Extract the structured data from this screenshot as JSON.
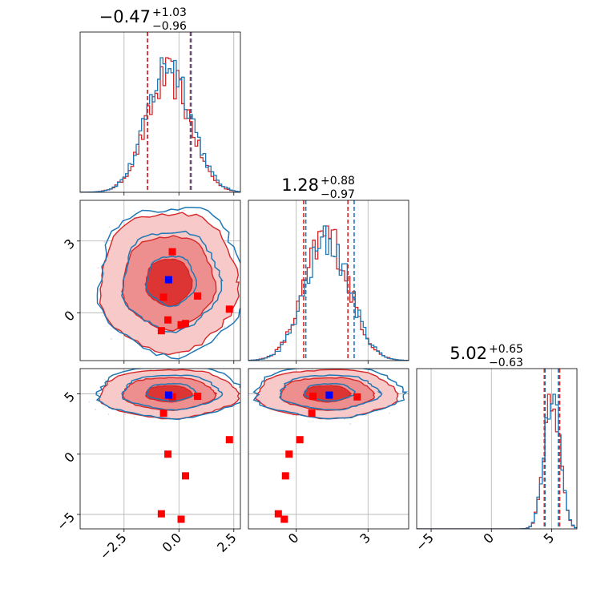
{
  "chart_data": {
    "type": "corner",
    "grid": true,
    "colors": {
      "series_a": "#1f77b4",
      "series_b": "#d62728",
      "marker_blue": "#0000ff",
      "marker_red": "#ff0000",
      "scatter": "#c8c8c8"
    },
    "parameters": [
      {
        "range": [
          -4.5,
          2.8
        ],
        "ticks": [
          -2.5,
          0.0,
          2.5
        ],
        "tick_labels": [
          "−2.5",
          "0.0",
          "2.5"
        ],
        "title": {
          "main": "−0.47",
          "sup": "+1.03",
          "sub": "−0.96"
        },
        "hist_mean": -0.47,
        "hist_sd": 1.0,
        "quantiles_a": [
          -1.43,
          0.56
        ],
        "quantiles_b": [
          -1.43,
          0.52
        ]
      },
      {
        "range": [
          -2.0,
          4.7
        ],
        "ticks": [
          0,
          3
        ],
        "tick_labels": [
          "0",
          "3"
        ],
        "title": {
          "main": "1.28",
          "sup": "+0.88",
          "sub": "−0.97"
        },
        "hist_mean": 1.28,
        "hist_sd": 0.93,
        "quantiles_a": [
          0.4,
          2.42
        ],
        "quantiles_b": [
          0.31,
          2.16
        ]
      },
      {
        "range": [
          -6.2,
          7.1
        ],
        "ticks": [
          -5,
          0,
          5
        ],
        "tick_labels": [
          "−5",
          "0",
          "5"
        ],
        "title": {
          "main": "5.02",
          "sup": "+0.65",
          "sub": "−0.63"
        },
        "hist_mean": 5.02,
        "hist_sd": 0.64,
        "quantiles_a": [
          4.45,
          5.55
        ],
        "quantiles_b": [
          4.39,
          5.67
        ]
      }
    ],
    "contour_levels_sigma": [
      0.6,
      1.2,
      1.8
    ],
    "blue_marker": [
      -0.47,
      1.38,
      4.9
    ],
    "red_markers": [
      [
        -0.3,
        2.55,
        4.75
      ],
      [
        -0.7,
        0.65,
        3.4
      ],
      [
        0.85,
        0.7,
        4.8
      ],
      [
        2.3,
        0.15,
        1.2
      ],
      [
        -0.5,
        -0.3,
        0.0
      ],
      [
        0.3,
        -0.45,
        -1.8
      ],
      [
        -0.8,
        -0.75,
        -4.95
      ],
      [
        0.1,
        -0.5,
        -5.4
      ]
    ]
  }
}
